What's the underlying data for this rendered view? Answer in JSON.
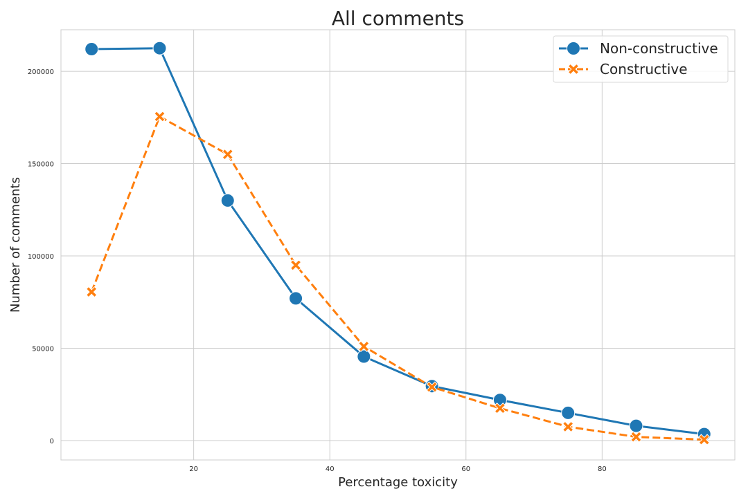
{
  "chart_data": {
    "type": "line",
    "title": "All comments",
    "xlabel": "Percentage toxicity",
    "ylabel": "Number of comments",
    "x": [
      5,
      15,
      25,
      35,
      45,
      55,
      65,
      75,
      85,
      95
    ],
    "xlim": [
      0.5,
      99.5
    ],
    "ylim": [
      -10500,
      222500
    ],
    "xticks": [
      20,
      40,
      60,
      80
    ],
    "yticks": [
      0,
      50000,
      100000,
      150000,
      200000
    ],
    "grid": true,
    "legend_position": "top-right",
    "series": [
      {
        "name": "Non-constructive",
        "values": [
          212000,
          212500,
          130000,
          77000,
          45500,
          29500,
          22000,
          15000,
          8000,
          3500
        ],
        "color": "#1f77b4",
        "marker": "circle",
        "linestyle": "solid"
      },
      {
        "name": "Constructive",
        "values": [
          80500,
          175500,
          155000,
          95000,
          51000,
          29000,
          17500,
          7500,
          2000,
          500
        ],
        "color": "#ff7f0e",
        "marker": "x",
        "linestyle": "dashed"
      }
    ]
  }
}
